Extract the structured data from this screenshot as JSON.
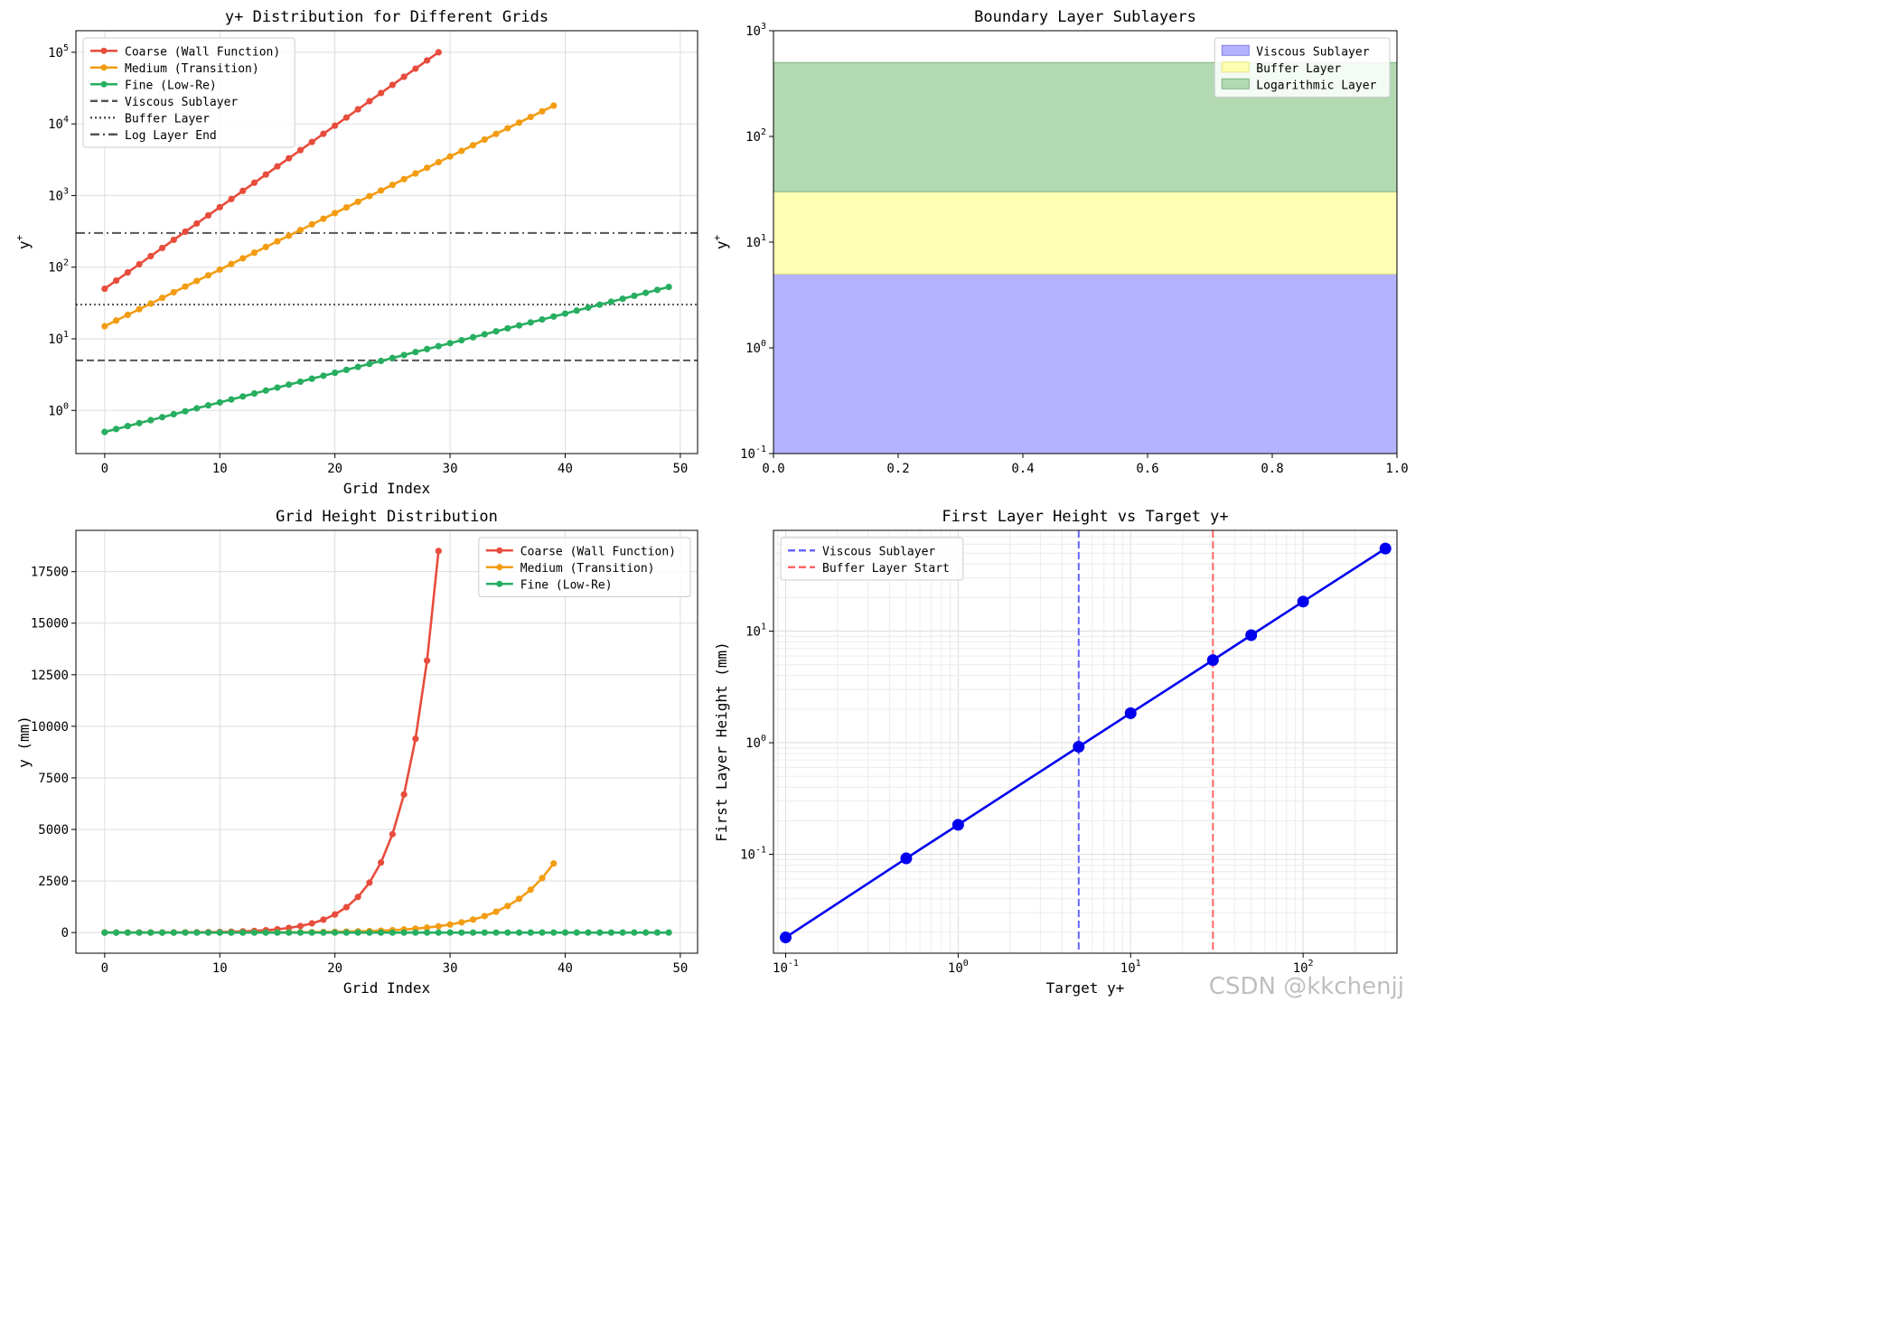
{
  "watermark": "CSDN @kkchenjj",
  "chart_data": [
    {
      "id": "yplus",
      "type": "line",
      "title": "y+ Distribution for Different Grids",
      "xlabel": "Grid Index",
      "ylabel": "y+",
      "xlim": [
        -2.5,
        51.5
      ],
      "ylim": [
        0.25,
        200000
      ],
      "yscale": "log",
      "x_ticks": [
        0,
        10,
        20,
        30,
        40,
        50
      ],
      "x_tick_labels": [
        "0",
        "10",
        "20",
        "30",
        "40",
        "50"
      ],
      "y_ticks": [
        1,
        10,
        100,
        1000,
        10000,
        100000
      ],
      "y_tick_labels": [
        "10^0",
        "10^1",
        "10^2",
        "10^3",
        "10^4",
        "10^5"
      ],
      "grid": true,
      "legend_position": "top-left",
      "series": [
        {
          "name": "Coarse (Wall Function)",
          "color": "#e74c3c",
          "marker": "circle",
          "x0": 0,
          "x1": 29,
          "start": 50,
          "end": 100000
        },
        {
          "name": "Medium (Transition)",
          "color": "#f39c12",
          "marker": "circle",
          "x0": 0,
          "x1": 39,
          "start": 15,
          "end": 18000
        },
        {
          "name": "Fine (Low-Re)",
          "color": "#27ae60",
          "marker": "circle",
          "x0": 0,
          "x1": 49,
          "start": 0.5,
          "end": 53
        }
      ],
      "reference_lines": [
        {
          "name": "Viscous Sublayer",
          "y": 5,
          "style": "dashed",
          "color": "#555555"
        },
        {
          "name": "Buffer Layer",
          "y": 30,
          "style": "dotted",
          "color": "#555555"
        },
        {
          "name": "Log Layer End",
          "y": 300,
          "style": "dashdot",
          "color": "#555555"
        }
      ]
    },
    {
      "id": "sublayers",
      "type": "area",
      "title": "Boundary Layer Sublayers",
      "xlabel": "",
      "ylabel": "y+",
      "xlim": [
        0,
        1
      ],
      "ylim": [
        0.1,
        1000
      ],
      "yscale": "log",
      "x_ticks": [
        0,
        0.2,
        0.4,
        0.6,
        0.8,
        1.0
      ],
      "x_tick_labels": [
        "0.0",
        "0.2",
        "0.4",
        "0.6",
        "0.8",
        "1.0"
      ],
      "y_ticks": [
        0.1,
        1,
        10,
        100,
        1000
      ],
      "y_tick_labels": [
        "10^-1",
        "10^0",
        "10^1",
        "10^2",
        "10^3"
      ],
      "grid": false,
      "legend_position": "top-right",
      "bands": [
        {
          "name": "Viscous Sublayer",
          "y0": 0.1,
          "y1": 5,
          "fill": "#b3b3ff",
          "edge": "#8080e6"
        },
        {
          "name": "Buffer Layer",
          "y0": 5,
          "y1": 30,
          "fill": "#ffffb3",
          "edge": "#e6e680"
        },
        {
          "name": "Logarithmic Layer",
          "y0": 30,
          "y1": 500,
          "fill": "#b3d9b3",
          "edge": "#80b380"
        }
      ]
    },
    {
      "id": "height",
      "type": "line",
      "title": "Grid Height Distribution",
      "xlabel": "Grid Index",
      "ylabel": "y (mm)",
      "xlim": [
        -2.5,
        51.5
      ],
      "ylim": [
        -1000,
        19500
      ],
      "yscale": "linear",
      "x_ticks": [
        0,
        10,
        20,
        30,
        40,
        50
      ],
      "x_tick_labels": [
        "0",
        "10",
        "20",
        "30",
        "40",
        "50"
      ],
      "y_ticks": [
        0,
        2500,
        5000,
        7500,
        10000,
        12500,
        15000,
        17500
      ],
      "y_tick_labels": [
        "0",
        "2500",
        "5000",
        "7500",
        "10000",
        "12500",
        "15000",
        "17500"
      ],
      "grid": true,
      "legend_position": "top-right",
      "series": [
        {
          "name": "Coarse (Wall Function)",
          "color": "#e74c3c",
          "x0": 0,
          "x1": 29,
          "start": 1,
          "end": 18500
        },
        {
          "name": "Medium (Transition)",
          "color": "#f39c12",
          "x0": 0,
          "x1": 39,
          "start": 0.3,
          "end": 3350
        },
        {
          "name": "Fine (Low-Re)",
          "color": "#27ae60",
          "x0": 0,
          "x1": 49,
          "start": 0.01,
          "end": 1.2
        }
      ]
    },
    {
      "id": "first_layer",
      "type": "line",
      "title": "First Layer Height vs Target y+",
      "xlabel": "Target y+",
      "ylabel": "First Layer Height (mm)",
      "xlim": [
        0.085,
        350
      ],
      "ylim": [
        0.013,
        80
      ],
      "xscale": "log",
      "yscale": "log",
      "x_ticks": [
        0.1,
        1,
        10,
        100
      ],
      "x_tick_labels": [
        "10^-1",
        "10^0",
        "10^1",
        "10^2"
      ],
      "y_ticks": [
        0.1,
        1,
        10
      ],
      "y_tick_labels": [
        "10^-1",
        "10^0",
        "10^1"
      ],
      "grid": true,
      "legend_position": "top-left",
      "series": [
        {
          "name": "",
          "color": "#0000ee",
          "x": [
            0.1,
            0.5,
            1,
            5,
            10,
            30,
            50,
            100,
            300
          ],
          "y": [
            0.018,
            0.092,
            0.184,
            0.92,
            1.84,
            5.5,
            9.2,
            18.4,
            55
          ]
        }
      ],
      "reference_lines": [
        {
          "name": "Viscous Sublayer",
          "x": 5,
          "style": "dashed",
          "color": "#6666ff"
        },
        {
          "name": "Buffer Layer Start",
          "x": 30,
          "style": "dashed",
          "color": "#ff6666"
        }
      ]
    }
  ]
}
